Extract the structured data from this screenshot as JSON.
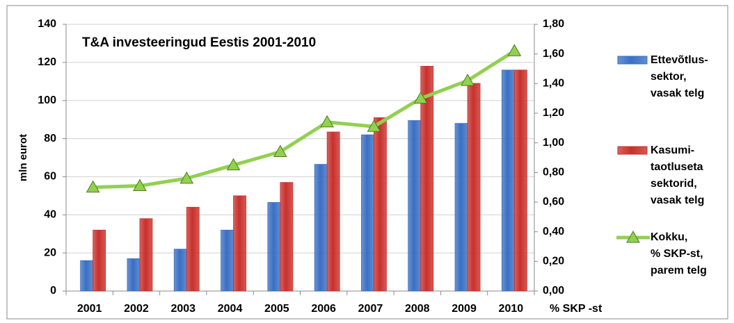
{
  "chart_data": {
    "type": "bar",
    "title": "T&A investeeringud  Eestis  2001-2010",
    "ylabel": "mln eurot",
    "y2label": "% SKP -st",
    "categories": [
      "2001",
      "2002",
      "2003",
      "2004",
      "2005",
      "2006",
      "2007",
      "2008",
      "2009",
      "2010"
    ],
    "ylim": [
      0,
      140
    ],
    "yticks": [
      0,
      20,
      40,
      60,
      80,
      100,
      120,
      140
    ],
    "y2lim": [
      0,
      1.8
    ],
    "y2ticks": [
      {
        "value": 0,
        "label": "0,00"
      },
      {
        "value": 0.2,
        "label": "0,20"
      },
      {
        "value": 0.4,
        "label": "0,40"
      },
      {
        "value": 0.6,
        "label": "0,60"
      },
      {
        "value": 0.8,
        "label": "0,80"
      },
      {
        "value": 1.0,
        "label": "1,00"
      },
      {
        "value": 1.2,
        "label": "1,20"
      },
      {
        "value": 1.4,
        "label": "1,40"
      },
      {
        "value": 1.6,
        "label": "1,60"
      },
      {
        "value": 1.8,
        "label": "1,80"
      }
    ],
    "grid": true,
    "legend": "right",
    "series": [
      {
        "name": "Ettevõtlus-\nsektor,\nvasak telg",
        "type": "bar",
        "color": "#3a6fc4",
        "values": [
          16,
          17,
          22,
          32,
          46.5,
          66.5,
          82,
          89.5,
          88,
          116
        ]
      },
      {
        "name": "Kasumi-\ntaotluseta\nsektorid,\nvasak telg",
        "type": "bar",
        "color": "#c9302c",
        "values": [
          32,
          38,
          44,
          50,
          57,
          83.5,
          91,
          118,
          109,
          116
        ]
      },
      {
        "name": "Kokku,\n% SKP-st,\nparem telg",
        "type": "line",
        "axis": "y2",
        "color": "#92d050",
        "values": [
          0.7,
          0.71,
          0.76,
          0.85,
          0.94,
          1.14,
          1.11,
          1.3,
          1.42,
          1.62
        ]
      }
    ]
  }
}
